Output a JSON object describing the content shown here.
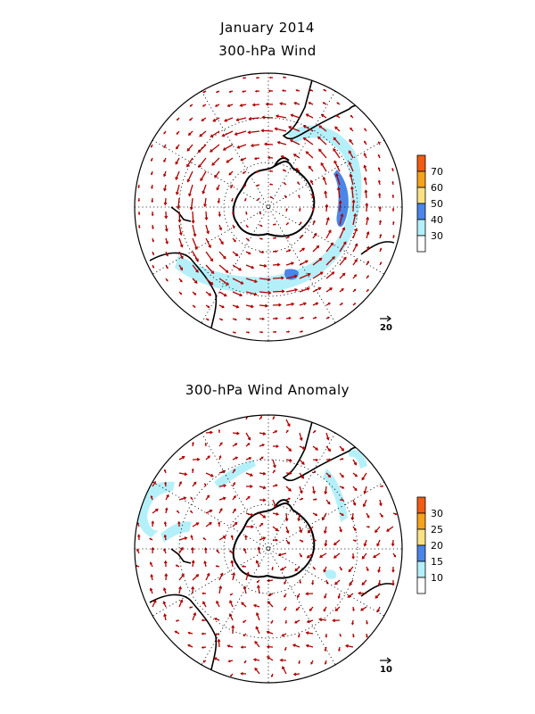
{
  "header": {
    "date_title": "January 2014",
    "top_title": "300-hPa Wind",
    "bottom_title": "300-hPa Wind Anomaly"
  },
  "top_panel": {
    "colorbar": {
      "levels": [
        "30",
        "40",
        "50",
        "60",
        "70"
      ],
      "colors": [
        "#ffffff",
        "#b4f0fa",
        "#4a86e8",
        "#fbe183",
        "#f7a21c",
        "#f25c12"
      ]
    },
    "reference_vector_label": "20",
    "shaded_regions": [
      "jet band 30–40",
      "core 40–50 east of Antarctica"
    ]
  },
  "bottom_panel": {
    "colorbar": {
      "levels": [
        "10",
        "15",
        "20",
        "25",
        "30"
      ],
      "colors": [
        "#ffffff",
        "#b4f0fa",
        "#4a86e8",
        "#fbe183",
        "#f7a21c",
        "#f25c12"
      ]
    },
    "reference_vector_label": "10",
    "shaded_regions": [
      "scattered patches 10–15"
    ]
  },
  "style": {
    "vector_color": "#b00000",
    "coast_color": "#000000",
    "grid_color": "#000000"
  }
}
